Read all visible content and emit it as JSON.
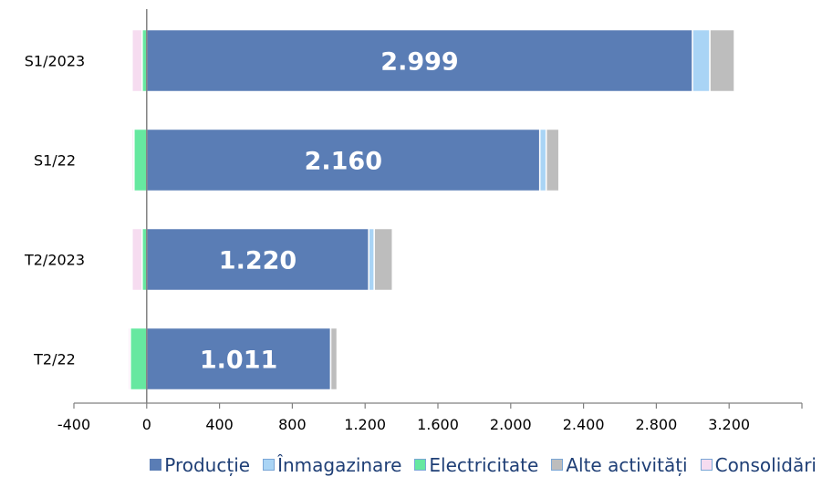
{
  "chart_data": {
    "type": "bar",
    "orientation": "horizontal",
    "stacked": true,
    "categories": [
      "S1/2023",
      "S1/22",
      "T2/2023",
      "T2/22"
    ],
    "series": [
      {
        "name": "Producție",
        "color": "#5a7db5",
        "values": [
          2999,
          2160,
          1220,
          1011
        ]
      },
      {
        "name": "Înmagazinare",
        "color": "#a9d4f5",
        "values": [
          95,
          35,
          30,
          0
        ]
      },
      {
        "name": "Electricitate",
        "color": "#66e8a0",
        "values": [
          -25,
          -70,
          -25,
          -90
        ]
      },
      {
        "name": "Alte activități",
        "color": "#bdbdbd",
        "values": [
          135,
          70,
          100,
          35
        ]
      },
      {
        "name": "Consolidări",
        "color": "#f6dcf0",
        "values": [
          -55,
          -10,
          -55,
          -10
        ]
      }
    ],
    "data_labels": [
      "2.999",
      "2.160",
      "1.220",
      "1.011"
    ],
    "xlim": [
      -400,
      3600
    ],
    "x_ticks": [
      -400,
      0,
      400,
      800,
      1200,
      1600,
      2000,
      2400,
      2800,
      3200
    ],
    "x_tick_labels": [
      "-400",
      "0",
      "400",
      "800",
      "1.200",
      "1.600",
      "2.000",
      "2.400",
      "2.800",
      "3.200"
    ],
    "title": "",
    "xlabel": "",
    "ylabel": "",
    "legend_position": "bottom",
    "grid": false
  }
}
